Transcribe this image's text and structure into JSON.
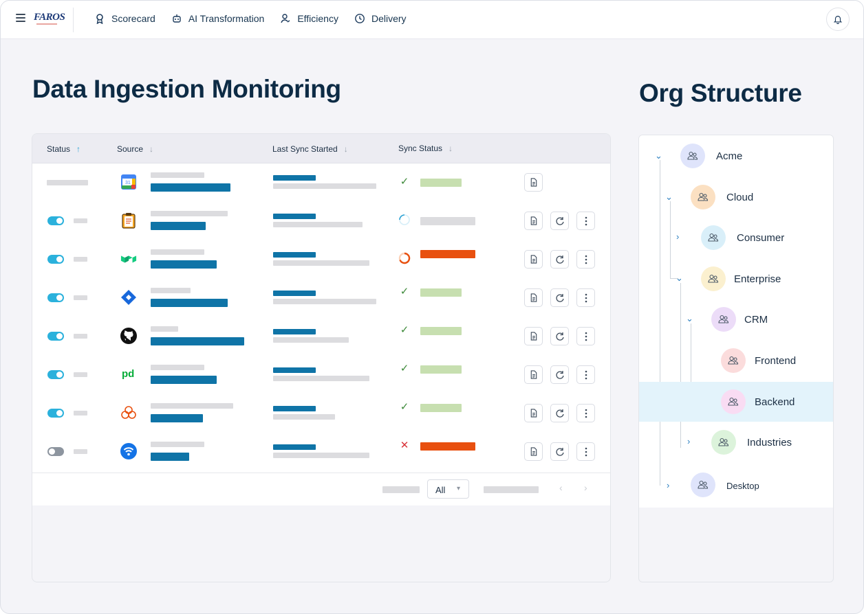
{
  "topbar": {
    "logo": "FAROS",
    "nav": [
      {
        "label": "Scorecard",
        "icon": "award-icon"
      },
      {
        "label": "AI Transformation",
        "icon": "robot-icon"
      },
      {
        "label": "Efficiency",
        "icon": "speed-icon"
      },
      {
        "label": "Delivery",
        "icon": "clock-icon"
      }
    ],
    "notifications_icon": "bell-icon"
  },
  "main": {
    "title": "Data Ingestion Monitoring"
  },
  "table": {
    "columns": [
      {
        "label": "Status",
        "sort": "ascending"
      },
      {
        "label": "Source",
        "sort": "none"
      },
      {
        "label": "Last Sync Started",
        "sort": "none"
      },
      {
        "label": "Sync Status",
        "sort": "none"
      }
    ],
    "rows": [
      {
        "toggle": "none",
        "source_icon": "google-calendar-icon",
        "sync_state": "success",
        "actions": [
          "logs"
        ]
      },
      {
        "toggle": "on",
        "source_icon": "clipboard-icon",
        "sync_state": "running",
        "actions": [
          "logs",
          "sync",
          "more"
        ]
      },
      {
        "toggle": "on",
        "source_icon": "buildkite-icon",
        "sync_state": "in-progress",
        "actions": [
          "logs",
          "sync",
          "more"
        ]
      },
      {
        "toggle": "on",
        "source_icon": "jira-icon",
        "sync_state": "success",
        "actions": [
          "logs",
          "sync",
          "more"
        ]
      },
      {
        "toggle": "on",
        "source_icon": "github-icon",
        "sync_state": "success",
        "actions": [
          "logs",
          "sync",
          "more"
        ]
      },
      {
        "toggle": "on",
        "source_icon": "pagerduty-icon",
        "sync_state": "success",
        "actions": [
          "logs",
          "sync",
          "more"
        ]
      },
      {
        "toggle": "on",
        "source_icon": "cloud-icon",
        "sync_state": "success",
        "actions": [
          "logs",
          "sync",
          "more"
        ]
      },
      {
        "toggle": "off",
        "source_icon": "wifi-icon",
        "sync_state": "failed",
        "actions": [
          "logs",
          "sync",
          "more"
        ]
      }
    ],
    "footer": {
      "rows_per_page_value": "All"
    }
  },
  "org": {
    "title": "Org Structure",
    "nodes": [
      {
        "label": "Acme",
        "expanded": true,
        "color": "#dfe4fb"
      },
      {
        "label": "Cloud",
        "expanded": true,
        "color": "#fbe0c2"
      },
      {
        "label": "Consumer",
        "expanded": false,
        "color": "#d9eff9"
      },
      {
        "label": "Enterprise",
        "expanded": true,
        "color": "#fbf0cf"
      },
      {
        "label": "CRM",
        "expanded": true,
        "color": "#ecdcf8"
      },
      {
        "label": "Frontend",
        "expanded": false,
        "color": "#fbdcdc"
      },
      {
        "label": "Backend",
        "expanded": false,
        "color": "#f9dcf3",
        "selected": true
      },
      {
        "label": "Industries",
        "expanded": false,
        "color": "#dcf3db"
      },
      {
        "label": "Desktop",
        "expanded": false,
        "color": "#dfe4fb"
      }
    ]
  },
  "colors": {
    "accent": "#0f74a7",
    "toggle_on": "#2bb1dc",
    "success_bar": "#c7dfb0",
    "error_bar": "#e8500f",
    "selected_row": "#e3f3fb"
  }
}
